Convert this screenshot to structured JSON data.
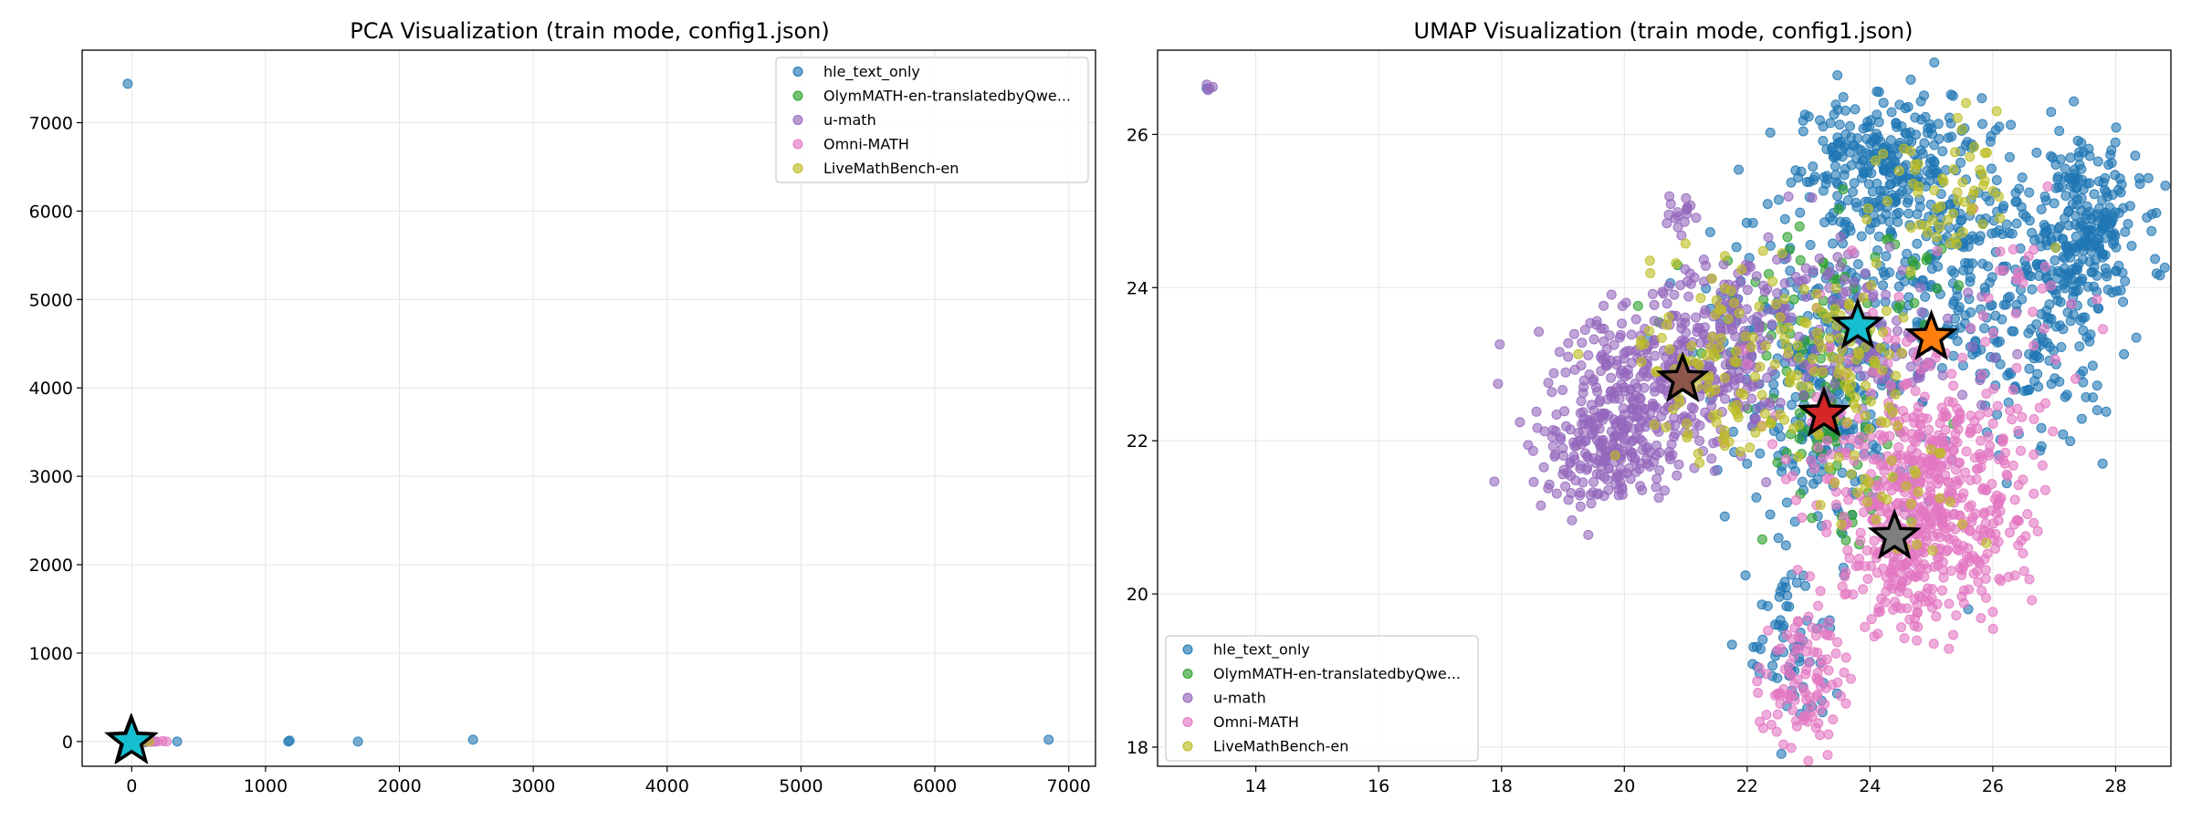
{
  "figure": {
    "background": "#ffffff"
  },
  "legend_entries": [
    {
      "label": "hle_text_only",
      "color": "#1f77b4"
    },
    {
      "label": "OlymMATH-en-translatedbyQwe...",
      "color": "#2ca02c"
    },
    {
      "label": "u-math",
      "color": "#9467bd"
    },
    {
      "label": "Omni-MATH",
      "color": "#e377c2"
    },
    {
      "label": "LiveMathBench-en",
      "color": "#bcbd22"
    }
  ],
  "chart_data": [
    {
      "type": "scatter",
      "title": "PCA Visualization (train mode, config1.json)",
      "xlabel": "",
      "ylabel": "",
      "xlim": [
        -370,
        7200
      ],
      "ylim": [
        -280,
        7820
      ],
      "xticks": [
        0,
        1000,
        2000,
        3000,
        4000,
        5000,
        6000,
        7000
      ],
      "yticks": [
        0,
        1000,
        2000,
        3000,
        4000,
        5000,
        6000,
        7000
      ],
      "grid": true,
      "legend_position": "top-right",
      "series": [
        {
          "name": "hle_text_only",
          "color": "#1f77b4",
          "points": [
            [
              -30,
              7440
            ],
            [
              0,
              0
            ],
            [
              40,
              10
            ],
            [
              90,
              -10
            ],
            [
              1170,
              0
            ],
            [
              1180,
              10
            ],
            [
              1690,
              0
            ],
            [
              2550,
              20
            ],
            [
              6850,
              20
            ],
            [
              340,
              0
            ]
          ]
        },
        {
          "name": "OlymMATH-en-translatedbyQwe...",
          "color": "#2ca02c",
          "points": [
            [
              10,
              5
            ],
            [
              60,
              -5
            ],
            [
              120,
              5
            ]
          ]
        },
        {
          "name": "u-math",
          "color": "#9467bd",
          "points": [
            [
              0,
              0
            ],
            [
              50,
              5
            ],
            [
              110,
              -5
            ],
            [
              170,
              0
            ]
          ]
        },
        {
          "name": "Omni-MATH",
          "color": "#e377c2",
          "points": [
            [
              30,
              0
            ],
            [
              80,
              5
            ],
            [
              140,
              -5
            ],
            [
              190,
              0
            ],
            [
              230,
              5
            ],
            [
              260,
              0
            ]
          ]
        },
        {
          "name": "LiveMathBench-en",
          "color": "#bcbd22",
          "points": [
            [
              20,
              5
            ],
            [
              70,
              -5
            ],
            [
              130,
              0
            ]
          ]
        }
      ],
      "centroids": [
        {
          "x": -5,
          "y": 5,
          "color": "#2b2b2b"
        },
        {
          "x": 0,
          "y": 0,
          "color": "#17becf"
        }
      ]
    },
    {
      "type": "scatter",
      "title": "UMAP Visualization (train mode, config1.json)",
      "xlabel": "",
      "ylabel": "",
      "xlim": [
        12.4,
        28.9
      ],
      "ylim": [
        17.75,
        27.1
      ],
      "xticks": [
        14,
        16,
        18,
        20,
        22,
        24,
        26,
        28
      ],
      "yticks": [
        18,
        20,
        22,
        24,
        26
      ],
      "grid": true,
      "legend_position": "bottom-left",
      "series": [
        {
          "name": "hle_text_only",
          "color": "#1f77b4",
          "clusters": [
            [
              24.3,
              25.6,
              0.75,
              0.45,
              260
            ],
            [
              27.5,
              24.8,
              0.45,
              0.55,
              220
            ],
            [
              25.4,
              24.2,
              1.3,
              0.9,
              300
            ],
            [
              23.3,
              22.6,
              0.7,
              0.9,
              200
            ],
            [
              22.7,
              19.3,
              0.35,
              0.6,
              70
            ],
            [
              26.7,
              23.4,
              0.6,
              0.7,
              120
            ],
            [
              22.4,
              23.6,
              0.9,
              0.6,
              60
            ]
          ],
          "points": [
            [
              13.2,
              26.6
            ],
            [
              27.7,
              22.4
            ],
            [
              25.6,
              19.8
            ],
            [
              22.0,
              21.7
            ]
          ]
        },
        {
          "name": "OlymMATH-en-translatedbyQwe...",
          "color": "#2ca02c",
          "clusters": [
            [
              23.4,
              22.0,
              0.55,
              0.65,
              60
            ],
            [
              22.6,
              23.3,
              0.8,
              0.6,
              40
            ],
            [
              24.2,
              24.0,
              0.8,
              0.6,
              30
            ]
          ],
          "points": []
        },
        {
          "name": "u-math",
          "color": "#9467bd",
          "clusters": [
            [
              20.4,
              22.6,
              0.8,
              0.55,
              320
            ],
            [
              19.6,
              21.8,
              0.55,
              0.35,
              150
            ],
            [
              21.6,
              23.5,
              0.6,
              0.5,
              160
            ],
            [
              20.9,
              25.0,
              0.15,
              0.12,
              16
            ],
            [
              23.2,
              23.6,
              0.8,
              0.7,
              80
            ],
            [
              24.9,
              23.0,
              0.7,
              0.5,
              50
            ]
          ],
          "points": [
            [
              13.2,
              26.65
            ],
            [
              13.25,
              26.6
            ],
            [
              13.3,
              26.62
            ],
            [
              13.22,
              26.58
            ]
          ]
        },
        {
          "name": "Omni-MATH",
          "color": "#e377c2",
          "clusters": [
            [
              24.9,
              21.5,
              0.75,
              0.7,
              380
            ],
            [
              24.5,
              20.3,
              0.5,
              0.45,
              140
            ],
            [
              22.9,
              18.9,
              0.32,
              0.55,
              110
            ],
            [
              25.8,
              21.0,
              0.5,
              0.6,
              90
            ],
            [
              23.8,
              22.5,
              0.8,
              0.8,
              50
            ],
            [
              26.6,
              24.0,
              0.6,
              0.7,
              30
            ]
          ],
          "points": []
        },
        {
          "name": "LiveMathBench-en",
          "color": "#bcbd22",
          "clusters": [
            [
              21.6,
              23.0,
              0.8,
              0.7,
              110
            ],
            [
              23.6,
              22.9,
              0.6,
              0.6,
              90
            ],
            [
              25.2,
              25.2,
              0.6,
              0.5,
              60
            ],
            [
              24.6,
              21.2,
              0.6,
              0.5,
              30
            ]
          ],
          "points": []
        }
      ],
      "centroids": [
        {
          "x": 23.8,
          "y": 23.5,
          "color": "#17becf"
        },
        {
          "x": 25.0,
          "y": 23.35,
          "color": "#ff7f0e"
        },
        {
          "x": 20.95,
          "y": 22.8,
          "color": "#8c564b"
        },
        {
          "x": 23.25,
          "y": 22.35,
          "color": "#d62728"
        },
        {
          "x": 24.4,
          "y": 20.75,
          "color": "#7f7f7f"
        }
      ]
    }
  ]
}
